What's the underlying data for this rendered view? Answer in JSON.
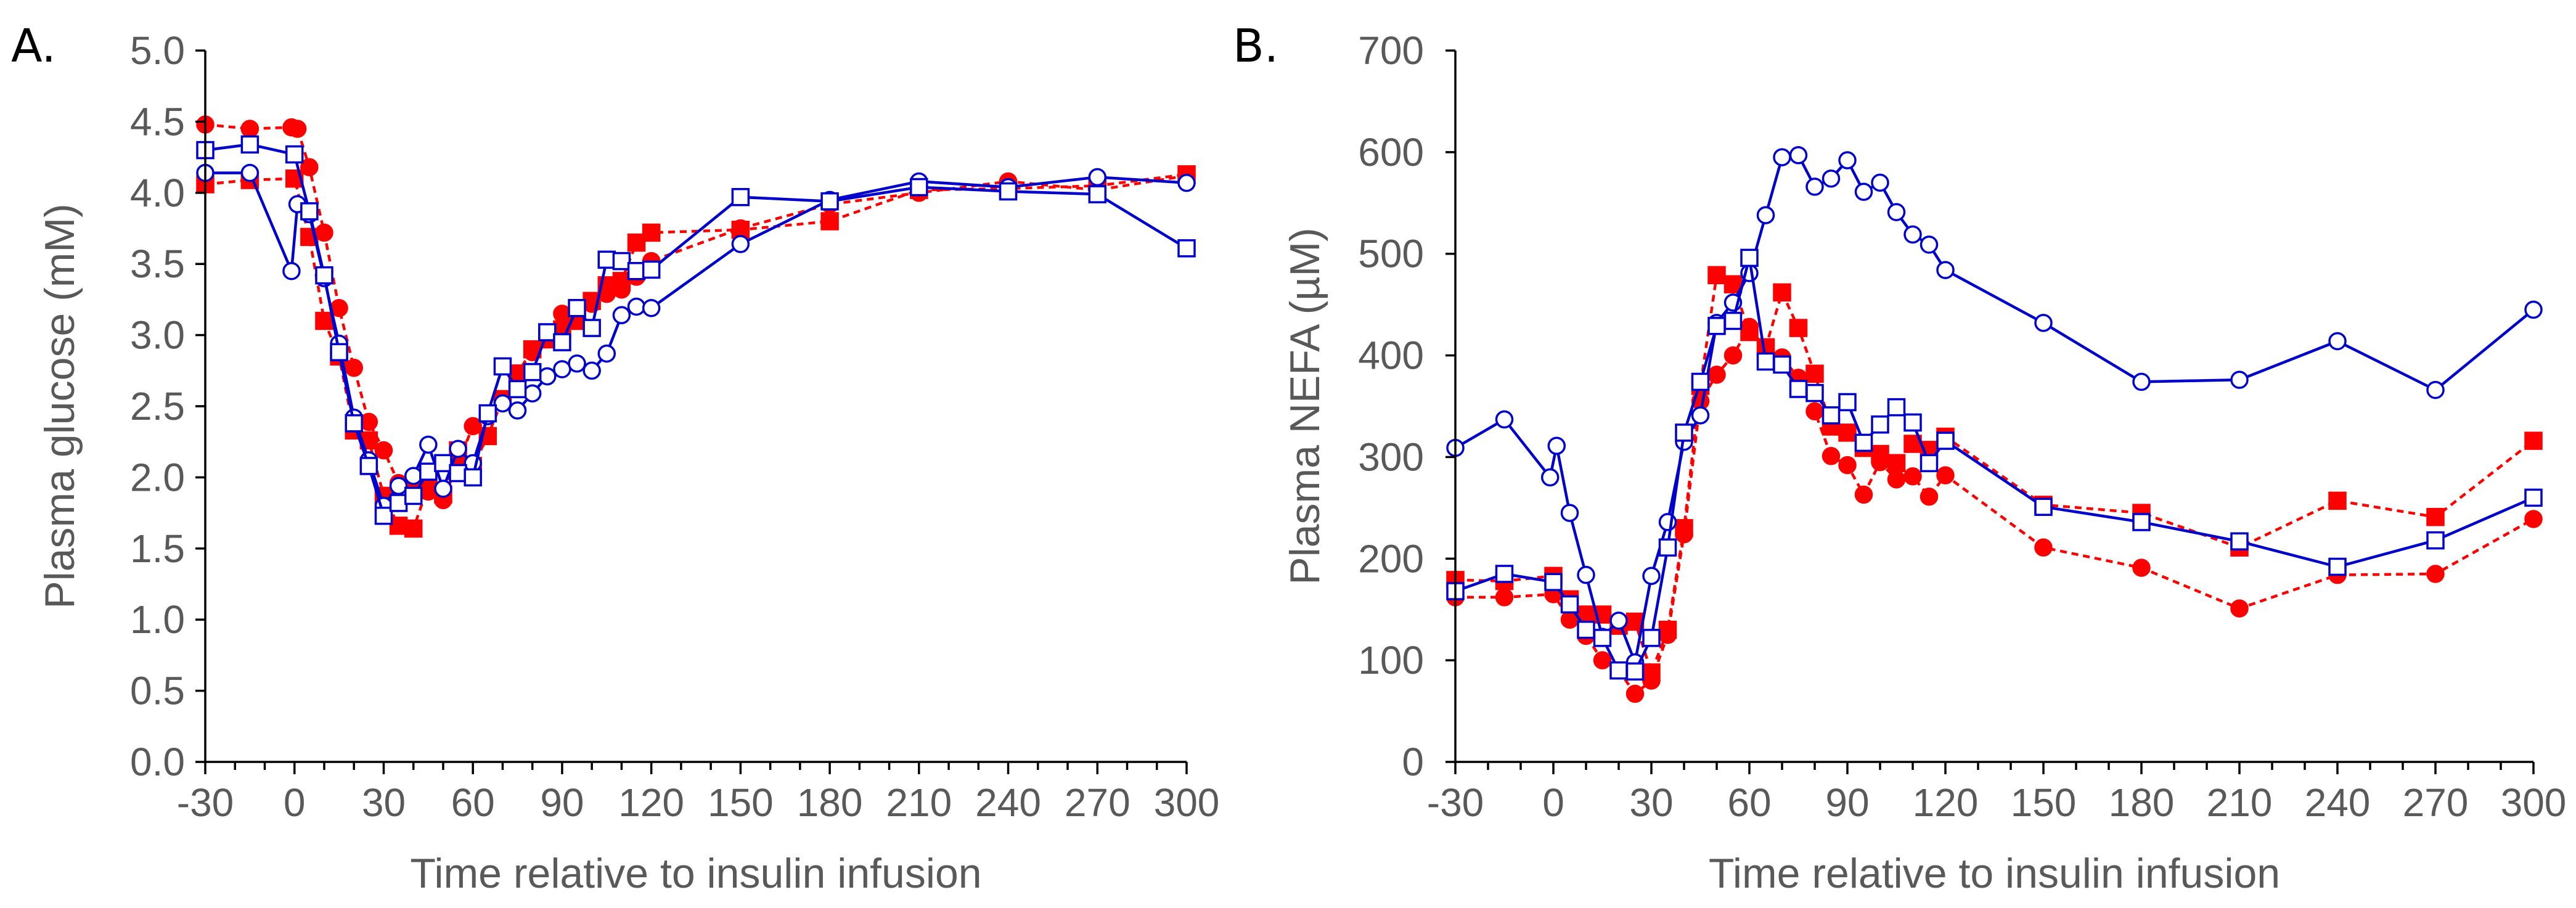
{
  "chart_data": [
    {
      "type": "line",
      "panel_label": "A.",
      "title": "",
      "xlabel": "Time relative to insulin infusion",
      "ylabel": "Plasma glucose (mM)",
      "xlim": [
        -30,
        300
      ],
      "ylim": [
        0,
        5
      ],
      "x_ticks": [
        -30,
        0,
        30,
        60,
        90,
        120,
        150,
        180,
        210,
        240,
        270,
        300
      ],
      "x_tick_labels": [
        "-30",
        "0",
        "30",
        "60",
        "90",
        "120",
        "150",
        "180",
        "210",
        "240",
        "270",
        "300"
      ],
      "y_ticks": [
        0,
        0.5,
        1,
        1.5,
        2,
        2.5,
        3,
        3.5,
        4,
        4.5,
        5
      ],
      "y_tick_labels": [
        "0.0",
        "0.5",
        "1.0",
        "1.5",
        "2.0",
        "2.5",
        "3.0",
        "3.5",
        "4.0",
        "4.5",
        "5.0"
      ],
      "grid": false,
      "legend": "none",
      "series": [
        {
          "name": "red-filled-circle-dashed",
          "color": "#ff0000",
          "marker": "circle",
          "filled": true,
          "dashed": true,
          "x": [
            -30,
            -15,
            -1,
            1,
            5,
            10,
            15,
            20,
            25,
            30,
            35,
            40,
            45,
            50,
            55,
            60,
            65,
            70,
            75,
            80,
            85,
            90,
            95,
            100,
            105,
            110,
            115,
            120,
            150,
            180,
            210,
            240,
            270,
            300
          ],
          "y": [
            4.48,
            4.45,
            4.46,
            4.45,
            4.18,
            3.72,
            3.19,
            2.77,
            2.39,
            2.19,
            1.96,
            1.93,
            1.9,
            1.84,
            2.1,
            2.36,
            2.43,
            2.55,
            2.73,
            2.88,
            3.01,
            3.15,
            3.18,
            3.22,
            3.29,
            3.32,
            3.41,
            3.52,
            3.75,
            3.92,
            4.0,
            4.08,
            4.02,
            4.12
          ]
        },
        {
          "name": "red-filled-square-dashed",
          "color": "#ff0000",
          "marker": "square",
          "filled": true,
          "dashed": true,
          "x": [
            -30,
            -15,
            0,
            5,
            10,
            15,
            20,
            25,
            30,
            35,
            40,
            45,
            50,
            55,
            60,
            65,
            70,
            75,
            80,
            85,
            90,
            95,
            100,
            105,
            110,
            115,
            120,
            150,
            180,
            210,
            240,
            270,
            300
          ],
          "y": [
            4.06,
            4.09,
            4.1,
            3.69,
            3.1,
            2.85,
            2.33,
            2.26,
            1.87,
            1.66,
            1.64,
            1.94,
            1.88,
            2.19,
            2.08,
            2.29,
            2.55,
            2.73,
            2.9,
            2.97,
            3.04,
            3.1,
            3.24,
            3.35,
            3.38,
            3.65,
            3.72,
            3.74,
            3.8,
            4.02,
            4.03,
            4.05,
            4.13
          ]
        },
        {
          "name": "blue-open-circle-solid",
          "color": "#0000cc",
          "marker": "circle",
          "filled": false,
          "dashed": false,
          "x": [
            -30,
            -15,
            -1,
            1,
            5,
            10,
            15,
            20,
            25,
            30,
            35,
            40,
            45,
            50,
            55,
            60,
            65,
            70,
            75,
            80,
            85,
            90,
            95,
            100,
            105,
            110,
            115,
            120,
            150,
            180,
            210,
            240,
            270,
            300
          ],
          "y": [
            4.14,
            4.14,
            3.45,
            3.92,
            3.85,
            3.4,
            2.94,
            2.42,
            2.12,
            1.8,
            1.94,
            2.01,
            2.23,
            1.92,
            2.2,
            2.1,
            2.43,
            2.52,
            2.47,
            2.59,
            2.71,
            2.76,
            2.8,
            2.75,
            2.87,
            3.14,
            3.2,
            3.19,
            3.64,
            3.95,
            4.08,
            4.04,
            4.11,
            4.07
          ]
        },
        {
          "name": "blue-open-square-solid",
          "color": "#0000cc",
          "marker": "square",
          "filled": false,
          "dashed": false,
          "x": [
            -30,
            -15,
            0,
            5,
            10,
            15,
            20,
            25,
            30,
            35,
            40,
            45,
            50,
            55,
            60,
            65,
            70,
            75,
            80,
            85,
            90,
            95,
            100,
            105,
            110,
            115,
            120,
            150,
            180,
            210,
            240,
            270,
            300
          ],
          "y": [
            4.3,
            4.34,
            4.27,
            3.87,
            3.42,
            2.88,
            2.38,
            2.08,
            1.73,
            1.82,
            1.87,
            2.04,
            2.1,
            2.03,
            2.0,
            2.45,
            2.78,
            2.62,
            2.74,
            3.02,
            2.95,
            3.19,
            3.05,
            3.53,
            3.52,
            3.45,
            3.46,
            3.97,
            3.94,
            4.04,
            4.01,
            3.99,
            3.61
          ]
        }
      ]
    },
    {
      "type": "line",
      "panel_label": "B.",
      "title": "",
      "xlabel": "Time relative to insulin infusion",
      "ylabel": "Plasma NEFA (µM)",
      "xlim": [
        -30,
        300
      ],
      "ylim": [
        0,
        700
      ],
      "x_ticks": [
        -30,
        0,
        30,
        60,
        90,
        120,
        150,
        180,
        210,
        240,
        270,
        300
      ],
      "x_tick_labels": [
        "-30",
        "0",
        "30",
        "60",
        "90",
        "120",
        "150",
        "180",
        "210",
        "240",
        "270",
        "300"
      ],
      "y_ticks": [
        0,
        100,
        200,
        300,
        400,
        500,
        600,
        700
      ],
      "y_tick_labels": [
        "0",
        "100",
        "200",
        "300",
        "400",
        "500",
        "600",
        "700"
      ],
      "grid": false,
      "legend": "none",
      "series": [
        {
          "name": "red-filled-circle-dashed",
          "color": "#ff0000",
          "marker": "circle",
          "filled": true,
          "dashed": true,
          "x": [
            -30,
            -15,
            0,
            5,
            10,
            15,
            20,
            25,
            30,
            35,
            40,
            45,
            50,
            55,
            60,
            65,
            70,
            75,
            80,
            85,
            90,
            95,
            100,
            105,
            110,
            115,
            120,
            150,
            180,
            210,
            240,
            270,
            300
          ],
          "y": [
            162,
            162,
            165,
            140,
            124,
            100,
            90,
            67,
            80,
            125,
            224,
            355,
            381,
            400,
            428,
            406,
            398,
            378,
            345,
            301,
            292,
            263,
            295,
            278,
            281,
            261,
            282,
            211,
            191,
            151,
            184,
            185,
            239
          ]
        },
        {
          "name": "red-filled-square-dashed",
          "color": "#ff0000",
          "marker": "square",
          "filled": true,
          "dashed": true,
          "x": [
            -30,
            -15,
            0,
            5,
            10,
            15,
            20,
            25,
            30,
            35,
            40,
            45,
            50,
            55,
            60,
            65,
            70,
            75,
            80,
            85,
            90,
            95,
            100,
            105,
            110,
            115,
            120,
            150,
            180,
            210,
            240,
            270,
            300
          ],
          "y": [
            179,
            178,
            183,
            160,
            145,
            145,
            134,
            138,
            88,
            130,
            230,
            370,
            479,
            470,
            423,
            408,
            462,
            427,
            382,
            330,
            324,
            309,
            303,
            294,
            313,
            307,
            320,
            253,
            245,
            211,
            257,
            241,
            316
          ]
        },
        {
          "name": "blue-open-circle-solid",
          "color": "#0000cc",
          "marker": "circle",
          "filled": false,
          "dashed": false,
          "x": [
            -30,
            -15,
            -1,
            1,
            5,
            10,
            15,
            20,
            25,
            30,
            35,
            40,
            45,
            50,
            55,
            60,
            65,
            70,
            75,
            80,
            85,
            90,
            95,
            100,
            105,
            110,
            115,
            120,
            150,
            180,
            210,
            240,
            270,
            300
          ],
          "y": [
            309,
            337,
            280,
            311,
            245,
            184,
            123,
            139,
            98,
            183,
            236,
            315,
            341,
            432,
            452,
            481,
            538,
            595,
            597,
            566,
            574,
            592,
            561,
            570,
            541,
            519,
            509,
            484,
            432,
            374,
            376,
            414,
            366,
            445
          ]
        },
        {
          "name": "blue-open-square-solid",
          "color": "#0000cc",
          "marker": "square",
          "filled": false,
          "dashed": false,
          "x": [
            -30,
            -15,
            0,
            5,
            10,
            15,
            20,
            25,
            30,
            35,
            40,
            45,
            50,
            55,
            60,
            65,
            70,
            75,
            80,
            85,
            90,
            95,
            100,
            105,
            110,
            115,
            120,
            150,
            180,
            210,
            240,
            270,
            300
          ],
          "y": [
            168,
            185,
            177,
            155,
            130,
            122,
            90,
            89,
            122,
            211,
            324,
            374,
            429,
            434,
            496,
            394,
            391,
            367,
            363,
            341,
            354,
            314,
            332,
            349,
            334,
            294,
            316,
            251,
            236,
            217,
            192,
            218,
            260
          ]
        }
      ]
    }
  ]
}
